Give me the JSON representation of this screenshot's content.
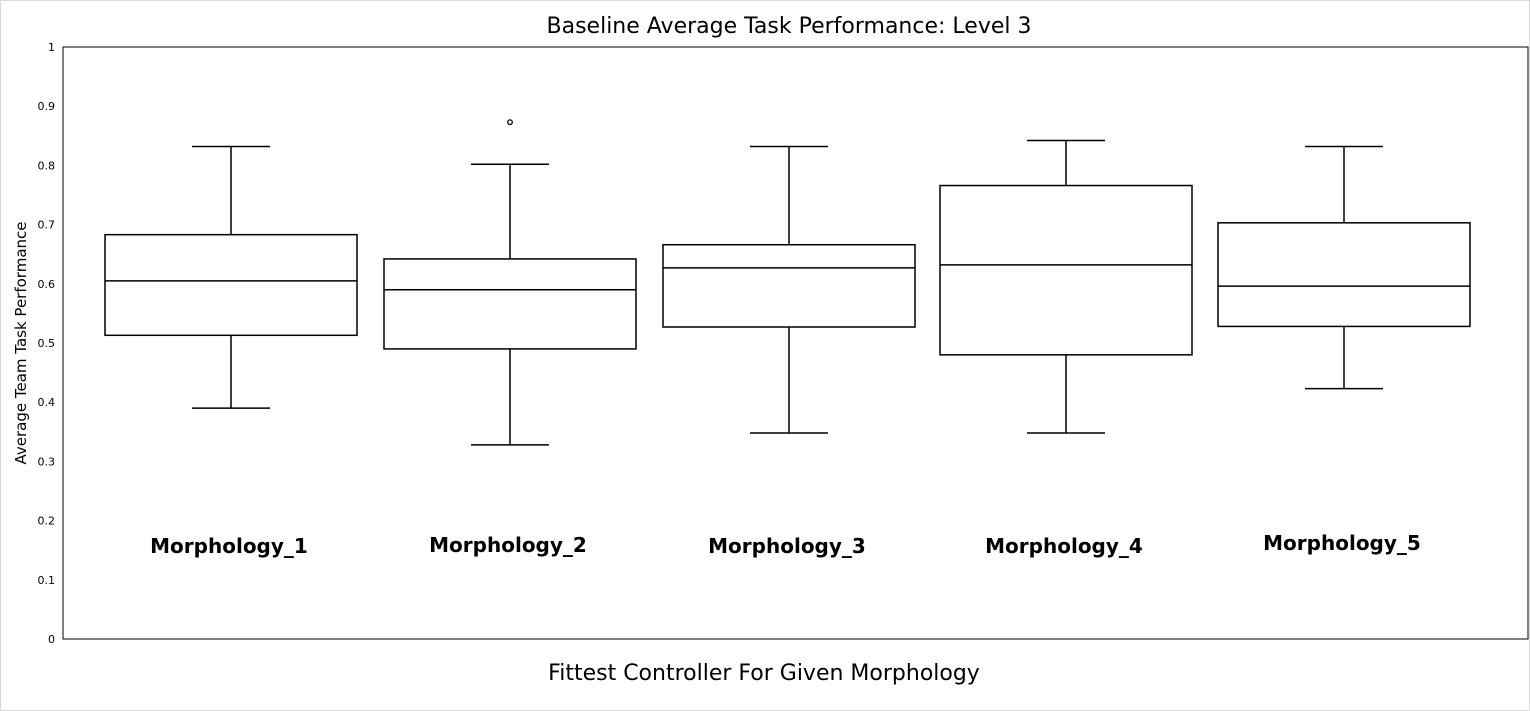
{
  "chart_data": {
    "type": "box",
    "title": "Baseline Average Task Performance: Level 3",
    "xlabel": "Fittest Controller For Given Morphology",
    "ylabel": "Average Team Task Performance",
    "ylim": [
      0,
      1
    ],
    "yticks": [
      "0",
      "0.1",
      "0.2",
      "0.3",
      "0.4",
      "0.5",
      "0.6",
      "0.7",
      "0.8",
      "0.9",
      "1"
    ],
    "grid": false,
    "categories": [
      "Morphology_1",
      "Morphology_2",
      "Morphology_3",
      "Morphology_4",
      "Morphology_5"
    ],
    "boxes": [
      {
        "min": 0.39,
        "q1": 0.513,
        "median": 0.605,
        "q3": 0.683,
        "max": 0.832,
        "outliers": []
      },
      {
        "min": 0.328,
        "q1": 0.49,
        "median": 0.59,
        "q3": 0.642,
        "max": 0.802,
        "outliers": [
          0.873
        ]
      },
      {
        "min": 0.348,
        "q1": 0.527,
        "median": 0.627,
        "q3": 0.666,
        "max": 0.832,
        "outliers": []
      },
      {
        "min": 0.348,
        "q1": 0.48,
        "median": 0.632,
        "q3": 0.766,
        "max": 0.842,
        "outliers": []
      },
      {
        "min": 0.423,
        "q1": 0.528,
        "median": 0.596,
        "q3": 0.703,
        "max": 0.832,
        "outliers": []
      }
    ]
  }
}
